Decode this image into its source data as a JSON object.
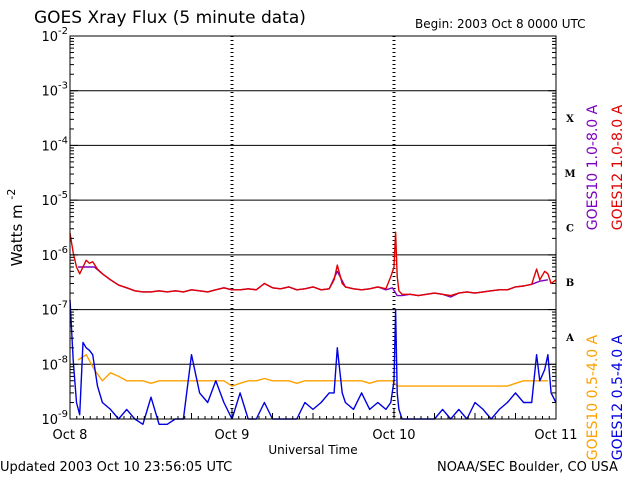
{
  "footer": {
    "updated": "Updated 2003 Oct 10 23:56:05 UTC",
    "source": "NOAA/SEC Boulder, CO USA"
  },
  "colors": {
    "goes10_long": "#8000c0",
    "goes12_long": "#e00000",
    "goes10_short": "#ffa000",
    "goes12_short": "#0000e0"
  },
  "chart_data": {
    "type": "line",
    "title": "GOES Xray Flux (5 minute data)",
    "begin_label": "Begin:  2003 Oct 8 0000 UTC",
    "xlabel": "Universal Time",
    "ylabel": "Watts m",
    "ylabel_sup": "-2",
    "y_scale": "log",
    "xlim_days": [
      0,
      3
    ],
    "ylim": [
      1e-09,
      0.01
    ],
    "x_ticks": [
      {
        "day": 0,
        "label": "Oct 8"
      },
      {
        "day": 1,
        "label": "Oct 9"
      },
      {
        "day": 2,
        "label": "Oct 10"
      },
      {
        "day": 3,
        "label": "Oct 11"
      }
    ],
    "y_ticks": [
      {
        "base": "10",
        "exp": "-9"
      },
      {
        "base": "10",
        "exp": "-8"
      },
      {
        "base": "10",
        "exp": "-7"
      },
      {
        "base": "10",
        "exp": "-6"
      },
      {
        "base": "10",
        "exp": "-5"
      },
      {
        "base": "10",
        "exp": "-4"
      },
      {
        "base": "10",
        "exp": "-3"
      },
      {
        "base": "10",
        "exp": "-2"
      }
    ],
    "flare_classes": [
      {
        "label": "X",
        "exp": -4
      },
      {
        "label": "M",
        "exp": -5
      },
      {
        "label": "C",
        "exp": -6
      },
      {
        "label": "B",
        "exp": -7
      },
      {
        "label": "A",
        "exp": -8
      }
    ],
    "grid": true,
    "legend": [
      {
        "label": "GOES10 1.0-8.0 A",
        "color_key": "goes10_long"
      },
      {
        "label": "GOES12 1.0-8.0 A",
        "color_key": "goes12_long"
      },
      {
        "label": "GOES10 0.5-4.0 A",
        "color_key": "goes10_short"
      },
      {
        "label": "GOES12 0.5-4.0 A",
        "color_key": "goes12_short"
      }
    ],
    "series": [
      {
        "name": "GOES10 1.0-8.0 A",
        "color_key": "goes10_long",
        "x_days": [
          0.05,
          0.1,
          0.15,
          0.2,
          0.25,
          0.3,
          0.35,
          0.4,
          0.45,
          0.5,
          0.55,
          0.6,
          0.65,
          0.7,
          0.75,
          0.8,
          0.85,
          0.9,
          0.95,
          1.0,
          1.05,
          1.1,
          1.15,
          1.2,
          1.25,
          1.3,
          1.35,
          1.4,
          1.45,
          1.5,
          1.55,
          1.6,
          1.65,
          1.7,
          1.75,
          1.8,
          1.85,
          1.9,
          1.95,
          1.99,
          2.02,
          2.05,
          2.1,
          2.15,
          2.2,
          2.25,
          2.3,
          2.35,
          2.4,
          2.45,
          2.5,
          2.55,
          2.6,
          2.65,
          2.7,
          2.75,
          2.8,
          2.85,
          2.9,
          2.95
        ],
        "y": [
          6e-07,
          6e-07,
          6e-07,
          4.5e-07,
          3.5e-07,
          2.8e-07,
          2.5e-07,
          2.2e-07,
          2.1e-07,
          2.1e-07,
          2.2e-07,
          2.1e-07,
          2.2e-07,
          2.1e-07,
          2.3e-07,
          2.2e-07,
          2.1e-07,
          2.3e-07,
          2.5e-07,
          2.3e-07,
          2.3e-07,
          2.4e-07,
          2.3e-07,
          3e-07,
          2.5e-07,
          2.4e-07,
          2.6e-07,
          2.3e-07,
          2.4e-07,
          2.6e-07,
          2.3e-07,
          2.4e-07,
          5e-07,
          2.6e-07,
          2.4e-07,
          2.3e-07,
          2.4e-07,
          2.6e-07,
          2.3e-07,
          2.5e-07,
          1.8e-07,
          1.8e-07,
          1.9e-07,
          1.8e-07,
          1.9e-07,
          2e-07,
          1.9e-07,
          1.7e-07,
          2e-07,
          2.1e-07,
          2e-07,
          2.1e-07,
          2.2e-07,
          2.3e-07,
          2.3e-07,
          2.6e-07,
          2.7e-07,
          2.9e-07,
          3.3e-07,
          3.5e-07
        ]
      },
      {
        "name": "GOES12 1.0-8.0 A",
        "color_key": "goes12_long",
        "x_days": [
          0,
          0.02,
          0.04,
          0.06,
          0.08,
          0.1,
          0.12,
          0.14,
          0.17,
          0.2,
          0.25,
          0.3,
          0.35,
          0.4,
          0.45,
          0.5,
          0.55,
          0.6,
          0.65,
          0.7,
          0.75,
          0.8,
          0.85,
          0.9,
          0.95,
          1.0,
          1.05,
          1.1,
          1.15,
          1.2,
          1.25,
          1.3,
          1.35,
          1.4,
          1.45,
          1.5,
          1.55,
          1.6,
          1.63,
          1.65,
          1.68,
          1.7,
          1.75,
          1.8,
          1.85,
          1.9,
          1.95,
          1.98,
          2.0,
          2.01,
          2.02,
          2.03,
          2.05,
          2.1,
          2.15,
          2.2,
          2.25,
          2.3,
          2.35,
          2.4,
          2.45,
          2.5,
          2.55,
          2.6,
          2.65,
          2.7,
          2.75,
          2.8,
          2.85,
          2.88,
          2.9,
          2.93,
          2.95,
          2.97,
          3.0
        ],
        "y": [
          2.5e-06,
          1.1e-06,
          6e-07,
          4.5e-07,
          6e-07,
          8e-07,
          7e-07,
          7.5e-07,
          5.5e-07,
          4.5e-07,
          3.5e-07,
          2.8e-07,
          2.5e-07,
          2.2e-07,
          2.1e-07,
          2.1e-07,
          2.2e-07,
          2.1e-07,
          2.2e-07,
          2.1e-07,
          2.3e-07,
          2.2e-07,
          2.1e-07,
          2.3e-07,
          2.5e-07,
          2.3e-07,
          2.3e-07,
          2.4e-07,
          2.3e-07,
          3e-07,
          2.5e-07,
          2.4e-07,
          2.6e-07,
          2.3e-07,
          2.4e-07,
          2.6e-07,
          2.3e-07,
          2.4e-07,
          3.5e-07,
          6.5e-07,
          3e-07,
          2.6e-07,
          2.4e-07,
          2.3e-07,
          2.4e-07,
          2.6e-07,
          2.4e-07,
          4e-07,
          6e-07,
          2.6e-06,
          4e-07,
          2.2e-07,
          1.9e-07,
          1.9e-07,
          1.8e-07,
          1.9e-07,
          2e-07,
          1.9e-07,
          1.8e-07,
          2e-07,
          2.1e-07,
          2e-07,
          2.1e-07,
          2.2e-07,
          2.3e-07,
          2.3e-07,
          2.6e-07,
          2.7e-07,
          2.9e-07,
          5.5e-07,
          3.5e-07,
          5e-07,
          4.5e-07,
          3e-07,
          3.5e-07
        ]
      },
      {
        "name": "GOES10 0.5-4.0 A",
        "color_key": "goes10_short",
        "x_days": [
          0.05,
          0.1,
          0.15,
          0.2,
          0.25,
          0.3,
          0.35,
          0.4,
          0.45,
          0.5,
          0.55,
          0.6,
          0.65,
          0.7,
          0.75,
          0.8,
          0.85,
          0.9,
          0.95,
          1.0,
          1.05,
          1.1,
          1.15,
          1.2,
          1.25,
          1.3,
          1.35,
          1.4,
          1.45,
          1.5,
          1.55,
          1.6,
          1.65,
          1.7,
          1.75,
          1.8,
          1.85,
          1.9,
          1.95,
          1.99,
          2.02,
          2.05,
          2.1,
          2.15,
          2.2,
          2.25,
          2.3,
          2.35,
          2.4,
          2.45,
          2.5,
          2.55,
          2.6,
          2.65,
          2.7,
          2.75,
          2.8,
          2.85,
          2.9,
          2.95
        ],
        "y": [
          1.2e-08,
          1.5e-08,
          8e-09,
          5e-09,
          7e-09,
          6e-09,
          5e-09,
          5e-09,
          5e-09,
          4.5e-09,
          5e-09,
          5e-09,
          5e-09,
          5e-09,
          5e-09,
          5e-09,
          5e-09,
          5e-09,
          5e-09,
          4e-09,
          4.5e-09,
          5e-09,
          5e-09,
          5.5e-09,
          5e-09,
          5e-09,
          5e-09,
          4.5e-09,
          5e-09,
          5e-09,
          5e-09,
          5e-09,
          5e-09,
          5e-09,
          5e-09,
          5e-09,
          4.5e-09,
          5e-09,
          5e-09,
          5e-09,
          4e-09,
          4e-09,
          4e-09,
          4e-09,
          4e-09,
          4e-09,
          4e-09,
          4e-09,
          4e-09,
          4e-09,
          4e-09,
          4e-09,
          4e-09,
          4e-09,
          4e-09,
          4.5e-09,
          5e-09,
          5e-09,
          5e-09,
          5e-09
        ]
      },
      {
        "name": "GOES12 0.5-4.0 A",
        "color_key": "goes12_short",
        "x_days": [
          0,
          0.02,
          0.04,
          0.06,
          0.08,
          0.1,
          0.12,
          0.14,
          0.17,
          0.2,
          0.25,
          0.3,
          0.35,
          0.4,
          0.45,
          0.5,
          0.55,
          0.6,
          0.65,
          0.7,
          0.75,
          0.8,
          0.85,
          0.9,
          0.95,
          1.0,
          1.05,
          1.1,
          1.15,
          1.2,
          1.25,
          1.3,
          1.35,
          1.4,
          1.45,
          1.5,
          1.55,
          1.6,
          1.63,
          1.65,
          1.68,
          1.7,
          1.75,
          1.8,
          1.85,
          1.9,
          1.95,
          1.98,
          2.0,
          2.01,
          2.02,
          2.03,
          2.05,
          2.1,
          2.15,
          2.2,
          2.25,
          2.3,
          2.35,
          2.4,
          2.45,
          2.5,
          2.55,
          2.6,
          2.65,
          2.7,
          2.75,
          2.8,
          2.85,
          2.88,
          2.9,
          2.93,
          2.95,
          2.97,
          3.0
        ],
        "y": [
          1.5e-07,
          1.2e-08,
          2e-09,
          1.2e-09,
          2.5e-08,
          2e-08,
          1.8e-08,
          1.5e-08,
          4e-09,
          2e-09,
          1.5e-09,
          1e-09,
          1.5e-09,
          1e-09,
          8e-10,
          2.5e-09,
          8e-10,
          8e-10,
          1e-09,
          1e-09,
          1.5e-08,
          3e-09,
          2e-09,
          5e-09,
          2e-09,
          1e-09,
          3e-09,
          1e-09,
          1e-09,
          2e-09,
          1e-09,
          1e-09,
          1e-09,
          1e-09,
          2e-09,
          1.5e-09,
          2e-09,
          3e-09,
          3e-09,
          2e-08,
          3e-09,
          2e-09,
          1.5e-09,
          3e-09,
          1.5e-09,
          2e-09,
          1.5e-09,
          2e-09,
          5e-09,
          1e-07,
          3e-09,
          1.5e-09,
          1e-09,
          1e-09,
          1e-09,
          1e-09,
          1e-09,
          1.5e-09,
          1e-09,
          1.5e-09,
          1e-09,
          2e-09,
          1.5e-09,
          1e-09,
          1.5e-09,
          2e-09,
          3e-09,
          2e-09,
          2e-09,
          1.5e-08,
          5e-09,
          8e-09,
          1.5e-08,
          3e-09,
          2e-09
        ]
      }
    ]
  }
}
